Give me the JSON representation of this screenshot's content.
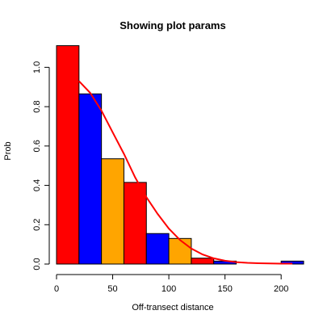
{
  "chart_data": {
    "type": "bar",
    "title": "Showing plot params",
    "xlabel": "Off-transect distance",
    "ylabel": "Prob",
    "xlim": [
      0,
      220
    ],
    "ylim": [
      0,
      1.1
    ],
    "x_ticks": [
      0,
      50,
      100,
      150,
      200
    ],
    "y_ticks": [
      0.0,
      0.2,
      0.4,
      0.6,
      0.8,
      1.0
    ],
    "x_tick_labels": [
      "0",
      "50",
      "100",
      "150",
      "200"
    ],
    "y_tick_labels": [
      "0.0",
      "0.2",
      "0.4",
      "0.6",
      "0.8",
      "1.0"
    ],
    "grid": false,
    "bins": [
      {
        "x0": 0,
        "x1": 20,
        "value": 1.11,
        "color": "#ff0000"
      },
      {
        "x0": 20,
        "x1": 40,
        "value": 0.865,
        "color": "#0000ff"
      },
      {
        "x0": 40,
        "x1": 60,
        "value": 0.535,
        "color": "#ffa500"
      },
      {
        "x0": 60,
        "x1": 80,
        "value": 0.415,
        "color": "#ff0000"
      },
      {
        "x0": 80,
        "x1": 100,
        "value": 0.155,
        "color": "#0000ff"
      },
      {
        "x0": 100,
        "x1": 120,
        "value": 0.13,
        "color": "#ffa500"
      },
      {
        "x0": 120,
        "x1": 140,
        "value": 0.03,
        "color": "#ff0000"
      },
      {
        "x0": 140,
        "x1": 160,
        "value": 0.015,
        "color": "#0000ff"
      },
      {
        "x0": 160,
        "x1": 180,
        "value": 0.0,
        "color": "#ffa500"
      },
      {
        "x0": 180,
        "x1": 200,
        "value": 0.0,
        "color": "#ff0000"
      },
      {
        "x0": 200,
        "x1": 220,
        "value": 0.015,
        "color": "#0000ff"
      }
    ],
    "fitted_line": {
      "color": "#ff0000",
      "x": [
        20,
        30,
        40,
        50,
        60,
        70,
        80,
        90,
        100,
        110,
        120,
        130,
        140,
        150,
        160,
        170,
        180,
        190,
        200,
        210
      ],
      "y": [
        0.93,
        0.87,
        0.78,
        0.67,
        0.56,
        0.44,
        0.34,
        0.255,
        0.18,
        0.122,
        0.079,
        0.049,
        0.029,
        0.017,
        0.01,
        0.006,
        0.004,
        0.003,
        0.002,
        0.002
      ]
    }
  }
}
